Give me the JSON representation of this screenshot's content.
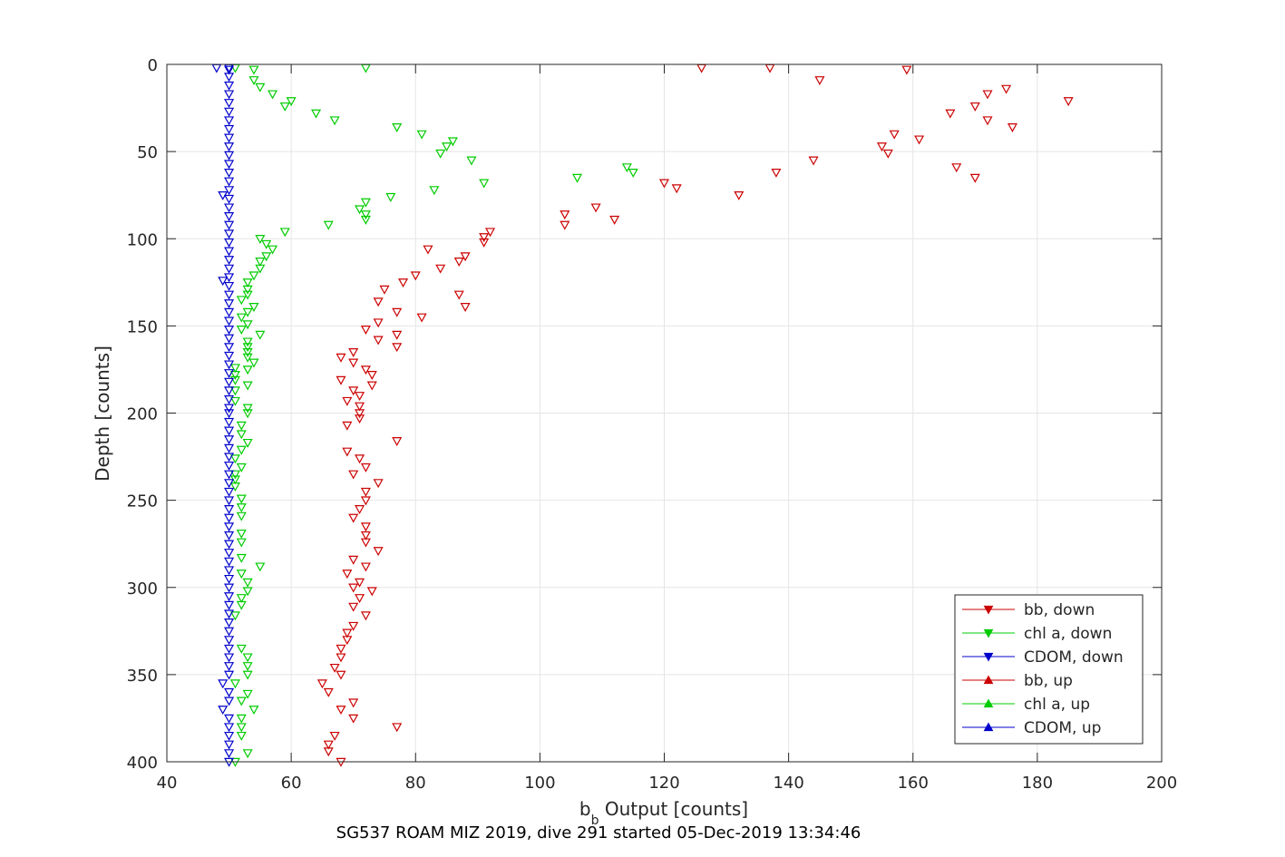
{
  "chart_data": {
    "type": "scatter",
    "xlabel_main": "b",
    "xlabel_sub": "b",
    "xlabel_rest": " Output [counts]",
    "ylabel": "Depth [counts]",
    "caption": "SG537 ROAM MIZ 2019, dive 291 started 05-Dec-2019 13:34:46",
    "xlim": [
      40,
      200
    ],
    "ylim": [
      0,
      400
    ],
    "y_reversed": true,
    "grid": true,
    "xticks": [
      40,
      60,
      80,
      100,
      120,
      140,
      160,
      180,
      200
    ],
    "yticks": [
      0,
      50,
      100,
      150,
      200,
      250,
      300,
      350,
      400
    ],
    "legend_position": "bottom-right",
    "colors": {
      "bb": "#cc0000",
      "chl": "#00cc00",
      "cdom": "#0000cc",
      "grid": "#e5e5e5",
      "axis": "#262626"
    },
    "series": [
      {
        "name": "bb, down",
        "marker": "triangle-down",
        "color": "#cc0000",
        "points": [
          [
            126,
            2
          ],
          [
            137,
            2
          ],
          [
            159,
            3
          ],
          [
            145,
            9
          ],
          [
            175,
            14
          ],
          [
            172,
            17
          ],
          [
            185,
            21
          ],
          [
            170,
            24
          ],
          [
            166,
            28
          ],
          [
            172,
            32
          ],
          [
            176,
            36
          ],
          [
            157,
            40
          ],
          [
            161,
            43
          ],
          [
            155,
            47
          ],
          [
            156,
            51
          ],
          [
            144,
            55
          ],
          [
            167,
            59
          ],
          [
            138,
            62
          ],
          [
            170,
            65
          ],
          [
            120,
            68
          ],
          [
            122,
            71
          ],
          [
            132,
            75
          ],
          [
            109,
            82
          ],
          [
            104,
            86
          ],
          [
            112,
            89
          ],
          [
            104,
            92
          ],
          [
            92,
            96
          ],
          [
            91,
            99
          ],
          [
            91,
            102
          ],
          [
            82,
            106
          ],
          [
            88,
            110
          ],
          [
            87,
            113
          ],
          [
            84,
            117
          ],
          [
            80,
            121
          ],
          [
            78,
            125
          ],
          [
            75,
            129
          ],
          [
            87,
            132
          ],
          [
            74,
            136
          ],
          [
            88,
            139
          ],
          [
            77,
            142
          ],
          [
            81,
            145
          ],
          [
            74,
            148
          ],
          [
            72,
            152
          ],
          [
            77,
            155
          ],
          [
            74,
            158
          ],
          [
            77,
            162
          ],
          [
            70,
            165
          ],
          [
            68,
            168
          ],
          [
            70,
            171
          ],
          [
            72,
            175
          ],
          [
            73,
            178
          ],
          [
            68,
            181
          ],
          [
            73,
            184
          ],
          [
            70,
            187
          ],
          [
            71,
            190
          ],
          [
            69,
            193
          ],
          [
            71,
            196
          ],
          [
            71,
            200
          ],
          [
            71,
            203
          ],
          [
            69,
            207
          ],
          [
            77,
            216
          ],
          [
            69,
            222
          ],
          [
            71,
            226
          ],
          [
            72,
            231
          ],
          [
            70,
            235
          ],
          [
            74,
            240
          ],
          [
            72,
            245
          ],
          [
            72,
            250
          ],
          [
            71,
            255
          ],
          [
            70,
            260
          ],
          [
            72,
            265
          ],
          [
            72,
            270
          ],
          [
            72,
            274
          ],
          [
            74,
            279
          ],
          [
            70,
            284
          ],
          [
            72,
            288
          ],
          [
            69,
            292
          ],
          [
            71,
            297
          ],
          [
            70,
            300
          ],
          [
            73,
            302
          ],
          [
            71,
            306
          ],
          [
            70,
            311
          ],
          [
            72,
            316
          ],
          [
            70,
            322
          ],
          [
            69,
            326
          ],
          [
            69,
            330
          ],
          [
            68,
            335
          ],
          [
            68,
            340
          ],
          [
            67,
            346
          ],
          [
            68,
            350
          ],
          [
            65,
            355
          ],
          [
            66,
            360
          ],
          [
            70,
            366
          ],
          [
            68,
            370
          ],
          [
            70,
            375
          ],
          [
            77,
            380
          ],
          [
            67,
            385
          ],
          [
            66,
            390
          ],
          [
            66,
            394
          ],
          [
            68,
            400
          ]
        ]
      },
      {
        "name": "chl a, down",
        "marker": "triangle-down",
        "color": "#00cc00",
        "points": [
          [
            51,
            2
          ],
          [
            72,
            2
          ],
          [
            54,
            3
          ],
          [
            54,
            9
          ],
          [
            55,
            13
          ],
          [
            57,
            17
          ],
          [
            60,
            21
          ],
          [
            59,
            24
          ],
          [
            64,
            28
          ],
          [
            67,
            32
          ],
          [
            77,
            36
          ],
          [
            81,
            40
          ],
          [
            86,
            44
          ],
          [
            85,
            47
          ],
          [
            84,
            51
          ],
          [
            89,
            55
          ],
          [
            114,
            59
          ],
          [
            115,
            62
          ],
          [
            106,
            65
          ],
          [
            91,
            68
          ],
          [
            83,
            72
          ],
          [
            76,
            76
          ],
          [
            72,
            79
          ],
          [
            71,
            83
          ],
          [
            72,
            86
          ],
          [
            72,
            89
          ],
          [
            66,
            92
          ],
          [
            59,
            96
          ],
          [
            55,
            100
          ],
          [
            56,
            103
          ],
          [
            57,
            106
          ],
          [
            56,
            110
          ],
          [
            55,
            113
          ],
          [
            55,
            117
          ],
          [
            54,
            121
          ],
          [
            53,
            125
          ],
          [
            53,
            129
          ],
          [
            53,
            132
          ],
          [
            52,
            135
          ],
          [
            54,
            139
          ],
          [
            53,
            142
          ],
          [
            52,
            145
          ],
          [
            53,
            149
          ],
          [
            52,
            152
          ],
          [
            55,
            155
          ],
          [
            53,
            159
          ],
          [
            53,
            162
          ],
          [
            53,
            165
          ],
          [
            53,
            168
          ],
          [
            54,
            171
          ],
          [
            51,
            174
          ],
          [
            53,
            175
          ],
          [
            51,
            178
          ],
          [
            51,
            181
          ],
          [
            53,
            184
          ],
          [
            51,
            187
          ],
          [
            51,
            193
          ],
          [
            53,
            197
          ],
          [
            53,
            200
          ],
          [
            52,
            207
          ],
          [
            52,
            212
          ],
          [
            53,
            217
          ],
          [
            52,
            221
          ],
          [
            51,
            226
          ],
          [
            52,
            231
          ],
          [
            51,
            235
          ],
          [
            51,
            238
          ],
          [
            51,
            242
          ],
          [
            52,
            249
          ],
          [
            52,
            254
          ],
          [
            52,
            259
          ],
          [
            52,
            269
          ],
          [
            52,
            274
          ],
          [
            52,
            283
          ],
          [
            55,
            288
          ],
          [
            52,
            292
          ],
          [
            53,
            297
          ],
          [
            53,
            302
          ],
          [
            52,
            306
          ],
          [
            52,
            310
          ],
          [
            51,
            316
          ],
          [
            52,
            335
          ],
          [
            53,
            340
          ],
          [
            53,
            345
          ],
          [
            53,
            350
          ],
          [
            51,
            355
          ],
          [
            53,
            361
          ],
          [
            52,
            365
          ],
          [
            54,
            370
          ],
          [
            52,
            375
          ],
          [
            52,
            380
          ],
          [
            52,
            385
          ],
          [
            53,
            395
          ],
          [
            51,
            400
          ]
        ]
      },
      {
        "name": "CDOM, down",
        "marker": "triangle-down",
        "color": "#0000cc",
        "points": [
          [
            48,
            2
          ],
          [
            50,
            2
          ],
          [
            50,
            3
          ],
          [
            50,
            7
          ],
          [
            50,
            12
          ],
          [
            50,
            17
          ],
          [
            50,
            22
          ],
          [
            50,
            27
          ],
          [
            50,
            32
          ],
          [
            50,
            37
          ],
          [
            50,
            42
          ],
          [
            50,
            47
          ],
          [
            50,
            52
          ],
          [
            50,
            57
          ],
          [
            50,
            62
          ],
          [
            50,
            67
          ],
          [
            50,
            72
          ],
          [
            49,
            75
          ],
          [
            50,
            77
          ],
          [
            50,
            82
          ],
          [
            50,
            87
          ],
          [
            50,
            92
          ],
          [
            50,
            97
          ],
          [
            50,
            102
          ],
          [
            50,
            107
          ],
          [
            50,
            112
          ],
          [
            50,
            117
          ],
          [
            50,
            122
          ],
          [
            49,
            124
          ],
          [
            50,
            127
          ],
          [
            50,
            132
          ],
          [
            50,
            137
          ],
          [
            50,
            142
          ],
          [
            50,
            147
          ],
          [
            50,
            152
          ],
          [
            50,
            157
          ],
          [
            50,
            162
          ],
          [
            50,
            167
          ],
          [
            50,
            172
          ],
          [
            50,
            177
          ],
          [
            50,
            182
          ],
          [
            50,
            187
          ],
          [
            50,
            192
          ],
          [
            50,
            197
          ],
          [
            50,
            200
          ],
          [
            50,
            205
          ],
          [
            50,
            210
          ],
          [
            50,
            215
          ],
          [
            50,
            220
          ],
          [
            50,
            225
          ],
          [
            50,
            230
          ],
          [
            50,
            235
          ],
          [
            50,
            240
          ],
          [
            50,
            245
          ],
          [
            50,
            250
          ],
          [
            50,
            255
          ],
          [
            50,
            260
          ],
          [
            50,
            265
          ],
          [
            50,
            270
          ],
          [
            50,
            275
          ],
          [
            50,
            280
          ],
          [
            50,
            285
          ],
          [
            50,
            290
          ],
          [
            50,
            295
          ],
          [
            50,
            300
          ],
          [
            50,
            305
          ],
          [
            50,
            310
          ],
          [
            50,
            315
          ],
          [
            50,
            320
          ],
          [
            50,
            325
          ],
          [
            50,
            330
          ],
          [
            50,
            335
          ],
          [
            50,
            340
          ],
          [
            50,
            345
          ],
          [
            50,
            350
          ],
          [
            49,
            355
          ],
          [
            50,
            360
          ],
          [
            50,
            365
          ],
          [
            49,
            370
          ],
          [
            50,
            375
          ],
          [
            50,
            380
          ],
          [
            50,
            385
          ],
          [
            50,
            390
          ],
          [
            50,
            395
          ],
          [
            50,
            400
          ]
        ]
      },
      {
        "name": "bb, up",
        "marker": "triangle-up",
        "color": "#cc0000",
        "points": []
      },
      {
        "name": "chl a, up",
        "marker": "triangle-up",
        "color": "#00cc00",
        "points": []
      },
      {
        "name": "CDOM, up",
        "marker": "triangle-up",
        "color": "#0000cc",
        "points": []
      }
    ]
  }
}
